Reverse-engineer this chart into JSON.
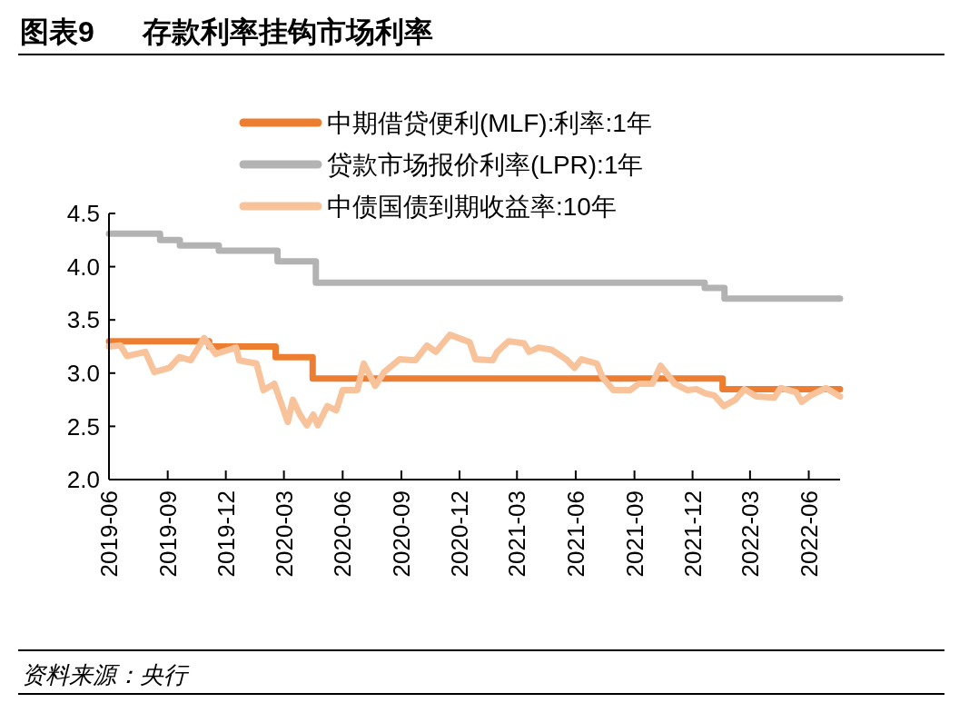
{
  "chart_data": {
    "type": "line",
    "title": "图表9      存款利率挂钩市场利率",
    "annotations": [
      "资料来源：央行"
    ],
    "xlim": [
      "2019-06-01",
      "2022-07-20"
    ],
    "xticks": [
      "2019-06",
      "2019-09",
      "2019-12",
      "2020-03",
      "2020-06",
      "2020-09",
      "2020-12",
      "2021-03",
      "2021-06",
      "2021-09",
      "2021-12",
      "2022-03",
      "2022-06"
    ],
    "ylim": [
      2.0,
      4.5
    ],
    "yticks": [
      {
        "value": 2.0,
        "label": "2.0"
      },
      {
        "value": 2.5,
        "label": "2.5"
      },
      {
        "value": 3.0,
        "label": "3.0"
      },
      {
        "value": 3.5,
        "label": "3.5"
      },
      {
        "value": 4.0,
        "label": "4.0"
      },
      {
        "value": 4.5,
        "label": "4.5"
      }
    ],
    "grid": false,
    "legend": "top",
    "marker": "none",
    "line_style": "solid",
    "series": [
      {
        "name": "中期借贷便利(MLF):利率:1年",
        "type": "step",
        "color": "#ed7d31",
        "x": [
          "2019-06-01",
          "2019-11-05",
          "2020-02-17",
          "2020-04-15",
          "2022-01-17",
          "2022-07-20"
        ],
        "values": [
          3.3,
          3.25,
          3.15,
          2.95,
          2.85,
          2.85
        ]
      },
      {
        "name": "贷款市场报价利率(LPR):1年",
        "type": "step",
        "color": "#b3b3b3",
        "x": [
          "2019-06-01",
          "2019-08-20",
          "2019-09-20",
          "2019-11-20",
          "2020-02-20",
          "2020-04-20",
          "2021-12-20",
          "2022-01-20",
          "2022-07-20"
        ],
        "values": [
          4.31,
          4.25,
          4.2,
          4.15,
          4.05,
          3.85,
          3.8,
          3.7,
          3.7
        ]
      },
      {
        "name": "中债国债到期收益率:10年",
        "type": "line",
        "color": "#f8c39a",
        "x": [
          "2019-06-01",
          "2019-06-19",
          "2019-06-29",
          "2019-07-28",
          "2019-08-11",
          "2019-09-04",
          "2019-09-19",
          "2019-10-07",
          "2019-10-28",
          "2019-11-15",
          "2019-12-17",
          "2019-12-22",
          "2020-01-18",
          "2020-01-29",
          "2020-02-15",
          "2020-02-22",
          "2020-03-07",
          "2020-03-15",
          "2020-03-26",
          "2020-04-06",
          "2020-04-16",
          "2020-04-23",
          "2020-05-08",
          "2020-05-22",
          "2020-06-01",
          "2020-06-24",
          "2020-07-04",
          "2020-07-22",
          "2020-08-05",
          "2020-08-29",
          "2020-09-23",
          "2020-10-11",
          "2020-10-25",
          "2020-11-16",
          "2020-12-17",
          "2020-12-26",
          "2021-01-22",
          "2021-01-29",
          "2021-02-16",
          "2021-03-12",
          "2021-03-20",
          "2021-04-04",
          "2021-04-24",
          "2021-05-17",
          "2021-05-30",
          "2021-06-10",
          "2021-07-04",
          "2021-07-13",
          "2021-07-30",
          "2021-08-25",
          "2021-09-08",
          "2021-09-29",
          "2021-10-12",
          "2021-11-03",
          "2021-11-23",
          "2021-12-07",
          "2021-12-21",
          "2022-01-04",
          "2022-01-19",
          "2022-02-06",
          "2022-02-20",
          "2022-03-11",
          "2022-04-08",
          "2022-04-18",
          "2022-05-12",
          "2022-05-21",
          "2022-06-04",
          "2022-06-28",
          "2022-07-20"
        ],
        "values": [
          3.25,
          3.26,
          3.16,
          3.2,
          3.01,
          3.05,
          3.15,
          3.12,
          3.33,
          3.18,
          3.24,
          3.12,
          3.09,
          2.84,
          2.9,
          2.78,
          2.54,
          2.75,
          2.61,
          2.51,
          2.61,
          2.51,
          2.69,
          2.65,
          2.84,
          2.84,
          3.09,
          2.88,
          3.01,
          3.13,
          3.12,
          3.26,
          3.2,
          3.36,
          3.29,
          3.13,
          3.12,
          3.2,
          3.3,
          3.28,
          3.2,
          3.24,
          3.22,
          3.13,
          3.05,
          3.13,
          3.09,
          2.96,
          2.84,
          2.84,
          2.9,
          2.9,
          3.07,
          2.9,
          2.84,
          2.85,
          2.81,
          2.79,
          2.69,
          2.75,
          2.85,
          2.78,
          2.77,
          2.86,
          2.82,
          2.73,
          2.79,
          2.86,
          2.78
        ]
      }
    ]
  }
}
